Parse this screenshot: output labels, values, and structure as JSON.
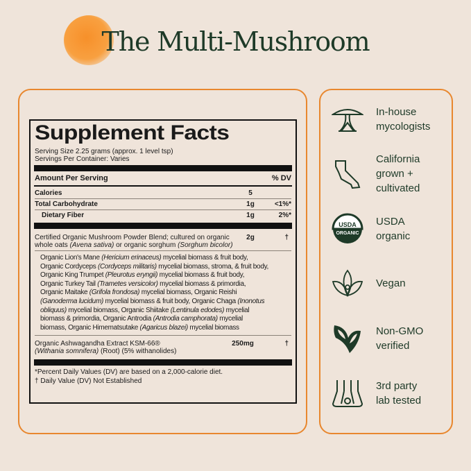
{
  "title": "The Multi-Mushroom",
  "facts": {
    "heading": "Supplement Facts",
    "serving_size": "Serving Size 2.25 grams (approx. 1 level tsp)",
    "servings": "Servings Per Container: Varies",
    "amount_header": "Amount Per Serving",
    "dv_header": "% DV",
    "rows": [
      {
        "name": "Calories",
        "amount": "5",
        "dv": ""
      },
      {
        "name": "Total Carbohydrate",
        "amount": "1g",
        "dv": "<1%*"
      },
      {
        "name": "Dietary Fiber",
        "amount": "1g",
        "dv": "2%*"
      }
    ],
    "blend": {
      "line1": "Certified Organic Mushroom Powder Blend; cultured on organic",
      "line2_a": "whole oats ",
      "line2_b": "(Avena sativa)",
      "line2_c": " or organic sorghum ",
      "line2_d": "(Sorghum bicolor)",
      "amount": "2g",
      "dv": "†"
    },
    "ingredients": [
      [
        [
          "Organic Lion's Mane ",
          0
        ],
        [
          "(Hericium erinaceus)",
          1
        ],
        [
          " mycelial biomass & fruit body,",
          0
        ]
      ],
      [
        [
          "Organic Cordyceps ",
          0
        ],
        [
          "(Cordyceps militaris)",
          1
        ],
        [
          " mycelial biomass, stroma, & fruit body,",
          0
        ]
      ],
      [
        [
          "Organic King Trumpet ",
          0
        ],
        [
          "(Pleurotus eryngii)",
          1
        ],
        [
          " mycelial biomass & fruit body,",
          0
        ]
      ],
      [
        [
          "Organic Turkey Tail ",
          0
        ],
        [
          "(Trametes versicolor)",
          1
        ],
        [
          " mycelial biomass & primordia,",
          0
        ]
      ],
      [
        [
          "Organic Maitake ",
          0
        ],
        [
          "(Grifola frondosa)",
          1
        ],
        [
          " mycelial biomass, Organic Reishi",
          0
        ]
      ],
      [
        [
          "(Ganoderma lucidum)",
          1
        ],
        [
          " mycelial biomass & fruit body, Organic Chaga ",
          0
        ],
        [
          "(Inonotus",
          1
        ]
      ],
      [
        [
          "obliquus)",
          1
        ],
        [
          " mycelial biomass, Organic Shiitake ",
          0
        ],
        [
          "(Lentinula edodes)",
          1
        ],
        [
          " mycelial",
          0
        ]
      ],
      [
        [
          "biomass & primordia, Organic Antrodia ",
          0
        ],
        [
          "(Antrodia camphorata)",
          1
        ],
        [
          " mycelial",
          0
        ]
      ],
      [
        [
          "biomass, Organic Himematsutake ",
          0
        ],
        [
          "(Agaricus blazei)",
          1
        ],
        [
          " mycelial biomass",
          0
        ]
      ]
    ],
    "ashwa": {
      "line1": "Organic Ashwagandha Extract KSM-66®",
      "line2_a": "(Withania somnifera)",
      "line2_b": " (Root) (5% withanolides)",
      "amount": "250mg",
      "dv": "†"
    },
    "footnote1": "*Percent Daily Values (DV) are based on a 2,000-calorie diet.",
    "footnote2": "† Daily Value (DV) Not Established"
  },
  "features": [
    {
      "icon": "mushroom-icon",
      "label": "In-house\nmycologists"
    },
    {
      "icon": "california-icon",
      "label": "California\ngrown +\ncultivated"
    },
    {
      "icon": "usda-organic-icon",
      "label": "USDA\norganic",
      "seal_text": [
        "USDA",
        "ORGANIC"
      ]
    },
    {
      "icon": "lotus-icon",
      "label": "Vegan"
    },
    {
      "icon": "butterfly-icon",
      "label": "Non-GMO\nverified"
    },
    {
      "icon": "flask-icon",
      "label": "3rd party\nlab tested"
    }
  ],
  "colors": {
    "accent": "#e8872e",
    "green": "#1e3a28",
    "background": "#efe4da"
  }
}
